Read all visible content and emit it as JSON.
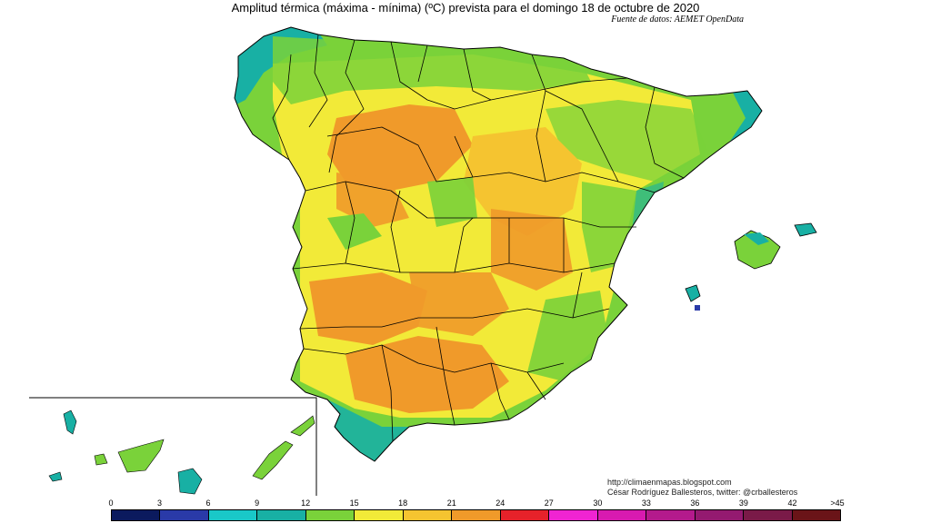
{
  "header": {
    "title": "Amplitud térmica (máxima - mínima) (ºC) prevista para el domingo 18 de octubre de 2020",
    "source": "Fuente de datos: AEMET OpenData"
  },
  "credits": {
    "url": "http://climaenmapas.blogspot.com",
    "author": "César Rodríguez Ballesteros, twitter: @crballesteros"
  },
  "legend": {
    "ticks": [
      "0",
      "3",
      "6",
      "9",
      "12",
      "15",
      "18",
      "21",
      "24",
      "27",
      "30",
      "33",
      "36",
      "39",
      "42",
      ">45"
    ],
    "colors": [
      "#0b1a5e",
      "#2a3aa8",
      "#19c8c8",
      "#18b0a4",
      "#7ad23a",
      "#f2ea38",
      "#f5c430",
      "#f09a2a",
      "#e6222a",
      "#f024d2",
      "#d81ab0",
      "#b41a8c",
      "#941a70",
      "#7a1a48",
      "#6a1418"
    ]
  },
  "palette": {
    "sea": "#ffffff",
    "border": "#000000",
    "range_9_12": "#18b0a4",
    "range_12_15": "#7ad23a",
    "range_15_18": "#f2ea38",
    "range_18_21": "#f5c430",
    "range_21_24": "#f09a2a"
  }
}
